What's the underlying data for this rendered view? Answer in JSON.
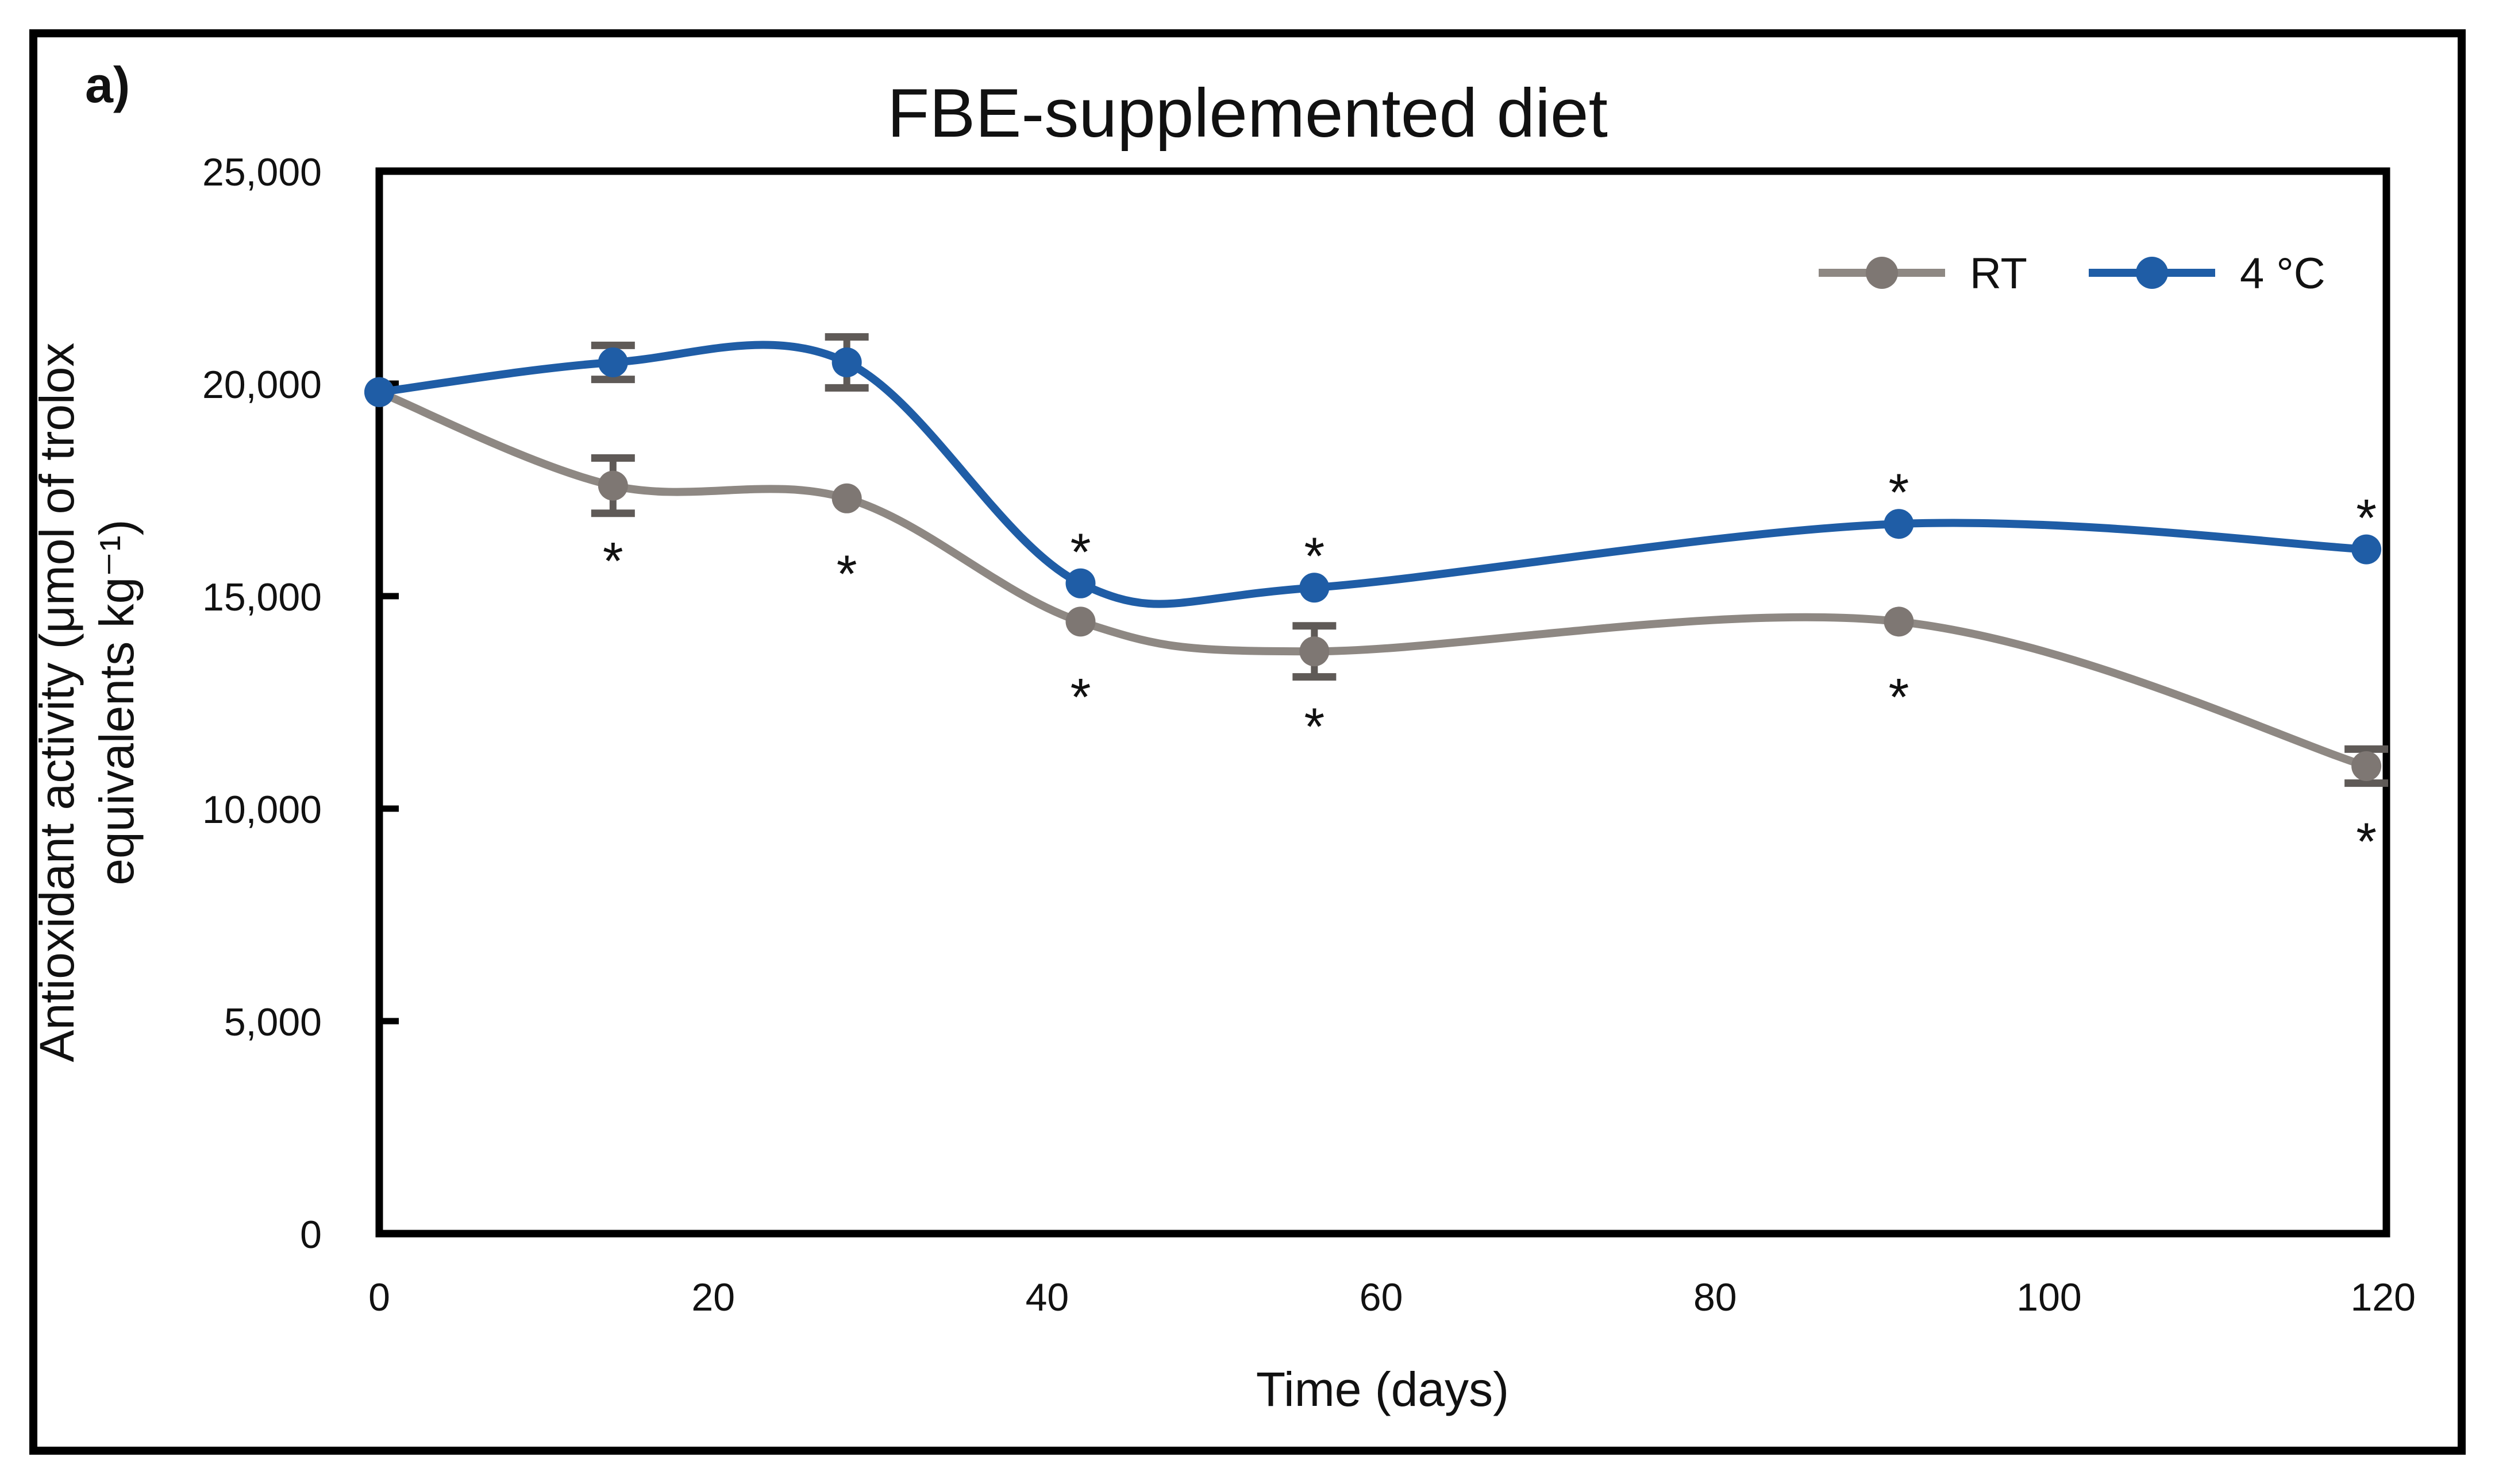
{
  "figure": {
    "panel_label": "a)"
  },
  "chart_data": {
    "type": "line",
    "title": "FBE-supplemented diet",
    "xlabel": "Time (days)",
    "ylabel": "Antioxidant activity (μmol of trolox equivalents kg⁻¹)",
    "ylabel_lines": [
      "Antioxidant activity (μmol of trolox",
      "equivalents kg⁻¹)"
    ],
    "x": [
      0,
      14,
      28,
      42,
      56,
      91,
      119
    ],
    "series": [
      {
        "name": "RT",
        "line_color": "#8e8883",
        "marker_color": "#7e7773",
        "values": [
          19800,
          17600,
          17300,
          14400,
          13700,
          14400,
          11000
        ],
        "errors": [
          0,
          650,
          0,
          0,
          600,
          0,
          400
        ],
        "significance": [
          false,
          true,
          true,
          true,
          true,
          true,
          true
        ],
        "sig_position": "below"
      },
      {
        "name": "4 °C",
        "line_color": "#1f5da6",
        "marker_color": "#1f5da6",
        "values": [
          19800,
          20500,
          20500,
          15300,
          15200,
          16700,
          16100
        ],
        "errors": [
          0,
          400,
          600,
          0,
          0,
          0,
          0
        ],
        "significance": [
          false,
          false,
          false,
          true,
          true,
          true,
          true
        ],
        "sig_position": "above"
      }
    ],
    "xlim": [
      0,
      120
    ],
    "ylim": [
      0,
      25000
    ],
    "x_ticks": {
      "values": [
        0,
        20,
        40,
        60,
        80,
        100,
        120
      ],
      "labels": [
        "0",
        "20",
        "40",
        "60",
        "80",
        "100",
        "120"
      ]
    },
    "y_ticks": {
      "values": [
        0,
        5000,
        10000,
        15000,
        20000,
        25000
      ],
      "labels": [
        "0",
        "5,000",
        "10,000",
        "15,000",
        "20,000",
        "25,000"
      ]
    },
    "legend": {
      "position": "top-right",
      "items": [
        "RT",
        "4 °C"
      ]
    },
    "grid": false,
    "significance_marker": "*",
    "error_bar_color": "#5f5a57",
    "axis_color": "#000000",
    "smooth_lines": true
  }
}
